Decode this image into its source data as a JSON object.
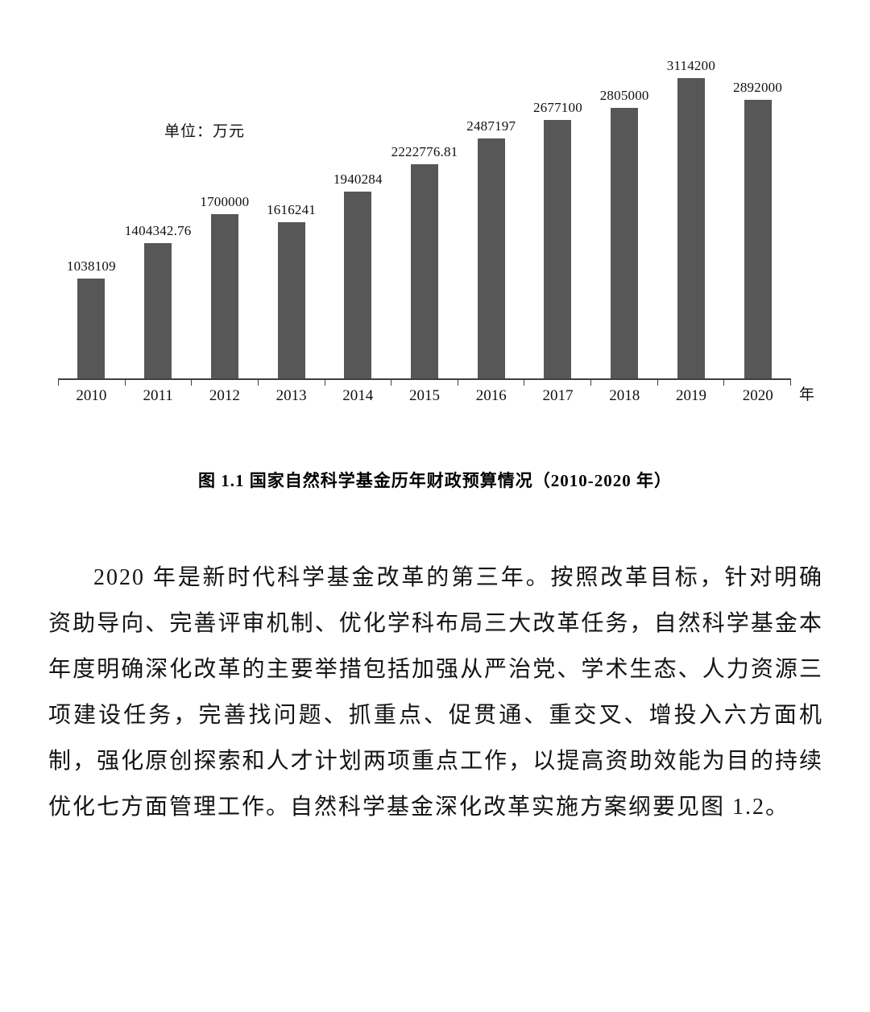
{
  "chart": {
    "unit_label": "单位：万元"
  },
  "chart_data": {
    "type": "bar",
    "categories": [
      "2010",
      "2011",
      "2012",
      "2013",
      "2014",
      "2015",
      "2016",
      "2017",
      "2018",
      "2019",
      "2020"
    ],
    "values": [
      1038109,
      1404342.76,
      1700000,
      1616241,
      1940284,
      2222776.81,
      2487197,
      2677100,
      2805000,
      3114200,
      2892000
    ],
    "labels": [
      "1038109",
      "1404342.76",
      "1700000",
      "1616241",
      "1940284",
      "2222776.81",
      "2487197",
      "2677100",
      "2805000",
      "3114200",
      "2892000"
    ],
    "title": "图 1.1 国家自然科学基金历年财政预算情况（2010-2020 年）",
    "xlabel": "年",
    "ylabel": "单位：万元",
    "ylim": [
      0,
      3200000
    ],
    "grid": false,
    "legend": false,
    "y_axis_visible": false,
    "bar_color": "#575757",
    "axis_color": "#3f3f3f"
  },
  "figure": {
    "caption": "图 1.1 国家自然科学基金历年财政预算情况（2010-2020 年）"
  },
  "body": {
    "paragraph": "2020 年是新时代科学基金改革的第三年。按照改革目标，针对明确资助导向、完善评审机制、优化学科布局三大改革任务，自然科学基金本年度明确深化改革的主要举措包括加强从严治党、学术生态、人力资源三项建设任务，完善找问题、抓重点、促贯通、重交叉、增投入六方面机制，强化原创探索和人才计划两项重点工作，以提高资助效能为目的持续优化七方面管理工作。自然科学基金深化改革实施方案纲要见图 1.2。"
  }
}
